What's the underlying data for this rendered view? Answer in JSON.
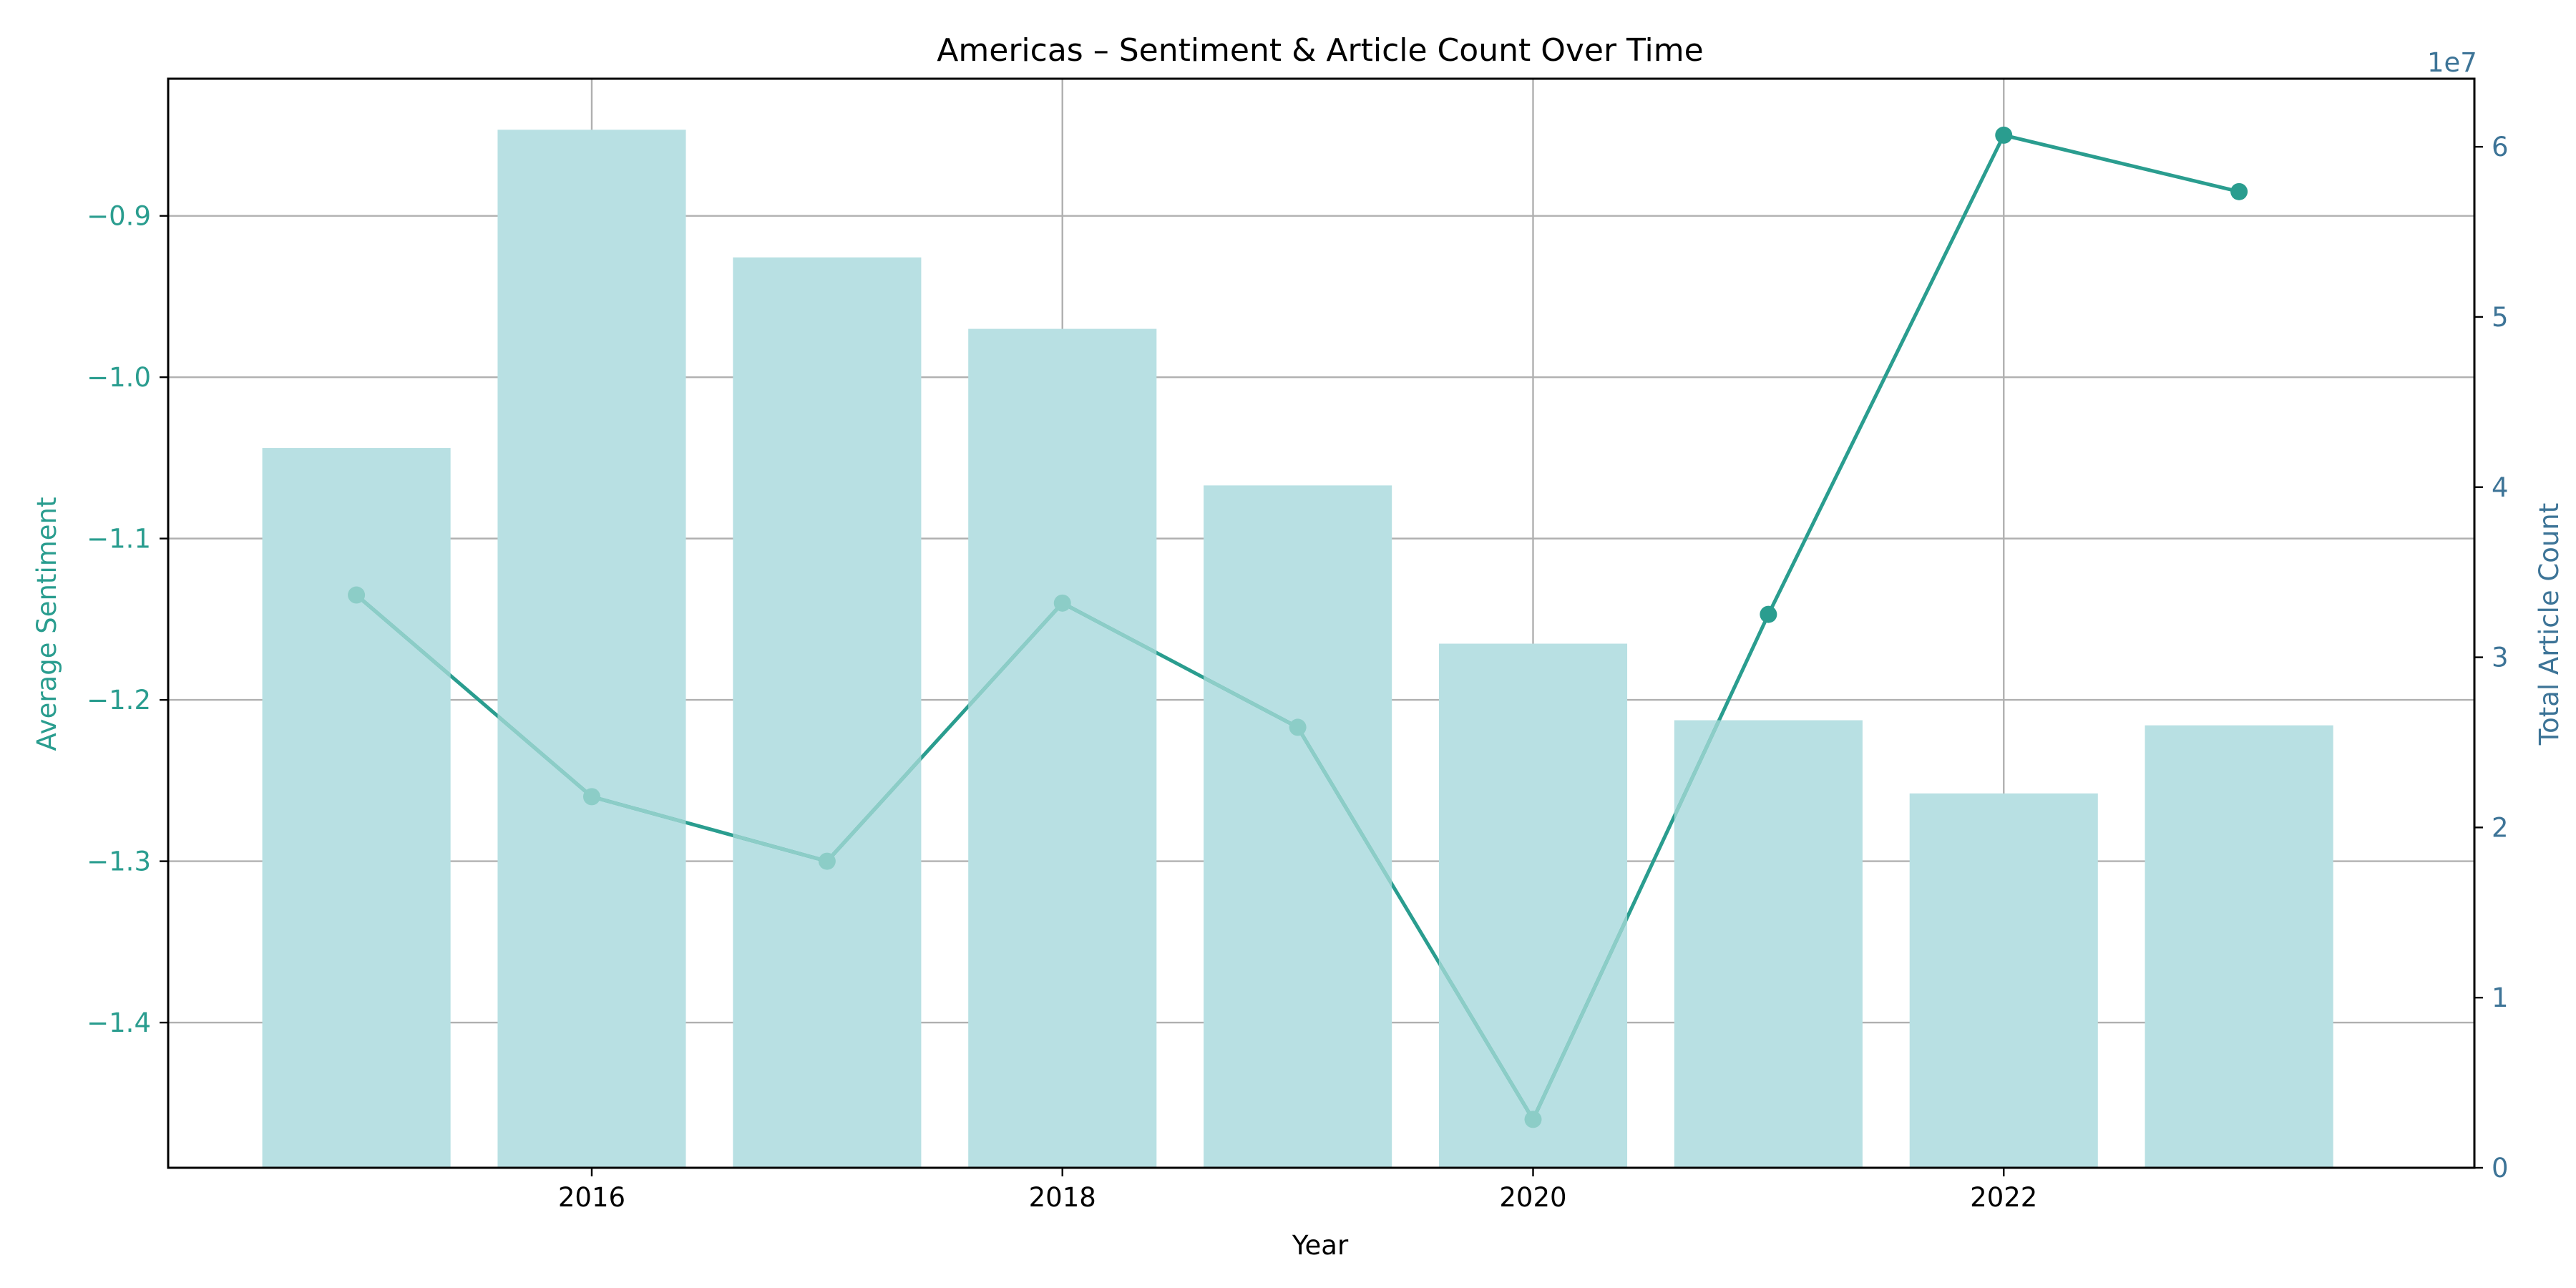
{
  "chart_data": {
    "type": "bar",
    "title": "Americas – Sentiment & Article Count Over Time",
    "xlabel": "Year",
    "ylabel_left": "Average Sentiment",
    "ylabel_right": "Total Article Count",
    "right_axis_offset_text": "1e7",
    "x": [
      2015,
      2016,
      2017,
      2018,
      2019,
      2020,
      2021,
      2022,
      2023
    ],
    "x_ticks": [
      2016,
      2018,
      2020,
      2022
    ],
    "xlim": [
      2014.2,
      2024.0
    ],
    "left_axis": {
      "ylim": [
        -1.49,
        -0.815
      ],
      "ticks": [
        -1.4,
        -1.3,
        -1.2,
        -1.1,
        -1.0,
        -0.9
      ],
      "tick_labels": [
        "−1.4",
        "−1.3",
        "−1.2",
        "−1.1",
        "−1.0",
        "−0.9"
      ],
      "color": "#2a9d8f"
    },
    "right_axis": {
      "ylim": [
        0,
        64000000
      ],
      "ticks": [
        0,
        10000000,
        20000000,
        30000000,
        40000000,
        50000000,
        60000000
      ],
      "tick_labels": [
        "0",
        "1",
        "2",
        "3",
        "4",
        "5",
        "6"
      ],
      "color": "#3d7497"
    },
    "series": [
      {
        "name": "Total Article Count",
        "type": "bar",
        "axis": "right",
        "values": [
          42300000,
          61000000,
          53500000,
          49300000,
          40100000,
          30800000,
          26300000,
          22000000,
          26000000
        ],
        "color": "#b8e0e3"
      },
      {
        "name": "Average Sentiment",
        "type": "line",
        "axis": "left",
        "values": [
          -1.135,
          -1.26,
          -1.3,
          -1.14,
          -1.217,
          -1.46,
          -1.147,
          -0.85,
          -0.885
        ],
        "color": "#2a9d8f",
        "overlay_color": "#8ccdc7"
      }
    ],
    "grid": true
  }
}
